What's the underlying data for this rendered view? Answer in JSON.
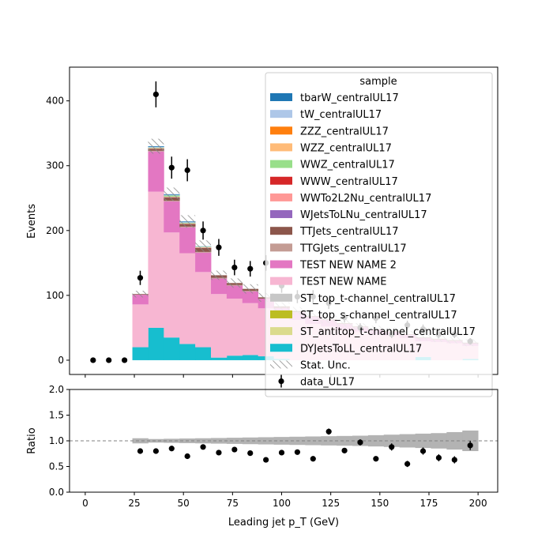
{
  "chart_data": [
    {
      "type": "bar",
      "subtype": "stacked-histogram-with-data",
      "xlabel": "",
      "ylabel": "Events",
      "xlim": [
        -8,
        210
      ],
      "ylim": [
        -22,
        452
      ],
      "xticks": [
        0,
        25,
        50,
        75,
        100,
        125,
        150,
        175,
        200
      ],
      "yticks": [
        0,
        100,
        200,
        300,
        400
      ],
      "bin_edges": [
        0,
        8,
        16,
        24,
        32,
        40,
        48,
        56,
        64,
        72,
        80,
        88,
        96,
        104,
        112,
        120,
        128,
        136,
        144,
        152,
        160,
        168,
        176,
        184,
        192,
        200
      ],
      "series": [
        {
          "name": "DYJetsToLL_centralUL17",
          "color": "#17becf",
          "values": [
            0,
            0,
            0,
            20,
            50,
            35,
            25,
            20,
            4,
            7,
            8,
            6,
            2,
            0,
            0,
            0,
            0,
            0,
            0,
            0,
            0,
            5,
            0,
            0,
            2
          ]
        },
        {
          "name": "ST_antitop_t-channel_centralUL17",
          "color": "#dbdb8d",
          "values": [
            0,
            0,
            0,
            0,
            0,
            0,
            0,
            0,
            0,
            0,
            0,
            0,
            0,
            0,
            0,
            0,
            0,
            0,
            0,
            0,
            0,
            0,
            0,
            0,
            0
          ]
        },
        {
          "name": "ST_top_s-channel_centralUL17",
          "color": "#bcbd22",
          "values": [
            0,
            0,
            0,
            0,
            0,
            0,
            0,
            0,
            0,
            0,
            0,
            0,
            0,
            0,
            0,
            0,
            0,
            0,
            0,
            0,
            0,
            0,
            0,
            0,
            0
          ]
        },
        {
          "name": "ST_top_t-channel_centralUL17",
          "color": "#c7c7c7",
          "values": [
            0,
            0,
            0,
            0,
            0,
            0,
            0,
            0,
            0,
            0,
            0,
            0,
            0,
            0,
            0,
            0,
            0,
            0,
            0,
            0,
            0,
            0,
            0,
            0,
            0
          ]
        },
        {
          "name": "TEST NEW NAME",
          "color": "#f7b6d2",
          "values": [
            0,
            0,
            0,
            66,
            210,
            162,
            140,
            116,
            98,
            88,
            80,
            74,
            66,
            62,
            56,
            52,
            48,
            44,
            40,
            38,
            34,
            24,
            28,
            26,
            20
          ]
        },
        {
          "name": "TEST NEW NAME 2",
          "color": "#e377c2",
          "values": [
            0,
            0,
            0,
            15,
            62,
            48,
            40,
            30,
            24,
            20,
            18,
            15,
            13,
            12,
            11,
            10,
            8,
            7,
            7,
            6,
            5,
            5,
            4,
            4,
            4
          ]
        },
        {
          "name": "TTGJets_centralUL17",
          "color": "#c49c94",
          "values": [
            0,
            0,
            0,
            0,
            1,
            1,
            1,
            1,
            1,
            1,
            1,
            0,
            0,
            0,
            0,
            0,
            0,
            0,
            0,
            0,
            0,
            0,
            0,
            0,
            0
          ]
        },
        {
          "name": "TTJets_centralUL17",
          "color": "#8c564b",
          "values": [
            0,
            0,
            0,
            1,
            3,
            5,
            4,
            6,
            4,
            3,
            3,
            2,
            2,
            2,
            1,
            1,
            1,
            1,
            1,
            1,
            1,
            1,
            1,
            1,
            1
          ]
        },
        {
          "name": "WJetsToLNu_centralUL17",
          "color": "#9467bd",
          "values": [
            0,
            0,
            0,
            0,
            0,
            0,
            0,
            0,
            0,
            0,
            0,
            0,
            0,
            0,
            0,
            0,
            0,
            0,
            0,
            0,
            0,
            0,
            0,
            0,
            0
          ]
        },
        {
          "name": "WWTo2L2Nu_centralUL17",
          "color": "#ff9896",
          "values": [
            0,
            0,
            0,
            0,
            1,
            1,
            1,
            1,
            0,
            0,
            0,
            0,
            0,
            0,
            0,
            0,
            0,
            0,
            0,
            0,
            0,
            0,
            0,
            0,
            0
          ]
        },
        {
          "name": "WWW_centralUL17",
          "color": "#d62728",
          "values": [
            0,
            0,
            0,
            0,
            0,
            0,
            0,
            0,
            0,
            0,
            0,
            0,
            0,
            0,
            0,
            0,
            0,
            0,
            0,
            0,
            0,
            0,
            0,
            0,
            0
          ]
        },
        {
          "name": "WWZ_centralUL17",
          "color": "#98df8a",
          "values": [
            0,
            0,
            0,
            0,
            1,
            2,
            1,
            1,
            0,
            0,
            0,
            0,
            0,
            0,
            0,
            0,
            0,
            0,
            0,
            0,
            0,
            0,
            0,
            0,
            0
          ]
        },
        {
          "name": "WZZ_centralUL17",
          "color": "#ffbb78",
          "values": [
            0,
            0,
            0,
            0,
            0,
            0,
            0,
            0,
            0,
            0,
            0,
            0,
            0,
            0,
            0,
            0,
            0,
            0,
            0,
            0,
            0,
            0,
            0,
            0,
            0
          ]
        },
        {
          "name": "ZZZ_centralUL17",
          "color": "#ff7f0e",
          "values": [
            0,
            0,
            0,
            0,
            0,
            0,
            0,
            0,
            0,
            0,
            0,
            0,
            0,
            0,
            0,
            0,
            0,
            0,
            0,
            0,
            0,
            0,
            0,
            0,
            0
          ]
        },
        {
          "name": "tW_centralUL17",
          "color": "#aec7e8",
          "values": [
            0,
            0,
            0,
            0,
            1,
            1,
            1,
            1,
            0,
            0,
            0,
            0,
            0,
            0,
            0,
            0,
            0,
            0,
            0,
            0,
            0,
            0,
            0,
            0,
            0
          ]
        },
        {
          "name": "tbarW_centralUL17",
          "color": "#1f77b4",
          "values": [
            0,
            0,
            0,
            0,
            1,
            1,
            1,
            0,
            0,
            0,
            0,
            0,
            0,
            0,
            0,
            0,
            0,
            0,
            0,
            0,
            0,
            0,
            0,
            0,
            0
          ]
        }
      ],
      "stat_unc": {
        "label": "Stat. Unc.",
        "fractional_halfwidth": [
          0,
          0,
          0,
          0.05,
          0.035,
          0.04,
          0.045,
          0.05,
          0.055,
          0.06,
          0.065,
          0.07,
          0.075,
          0.08,
          0.085,
          0.09,
          0.095,
          0.1,
          0.11,
          0.12,
          0.13,
          0.14,
          0.15,
          0.17,
          0.2
        ]
      },
      "data": {
        "name": "data_UL17",
        "x": [
          4,
          12,
          20,
          28,
          36,
          44,
          52,
          60,
          68,
          76,
          84,
          92,
          100,
          108,
          116,
          124,
          132,
          140,
          148,
          156,
          164,
          172,
          180,
          188,
          196
        ],
        "y": [
          0,
          0,
          0,
          127,
          410,
          297,
          293,
          200,
          174,
          143,
          141,
          150,
          115,
          98,
          98,
          88,
          66,
          50,
          65,
          40,
          54,
          48,
          40,
          40,
          29
        ],
        "yerr": [
          0,
          0,
          0,
          11,
          20,
          17,
          17,
          14,
          13,
          12,
          12,
          12,
          11,
          10,
          10,
          9,
          8,
          7,
          8,
          6,
          7,
          7,
          6,
          6,
          5
        ]
      },
      "legend": {
        "title": "sample",
        "placement": "upper right"
      }
    },
    {
      "type": "scatter",
      "subtype": "ratio-panel",
      "xlabel": "Leading jet  p_T (GeV)",
      "ylabel": "Ratio",
      "xlim": [
        -8,
        210
      ],
      "ylim": [
        0.0,
        2.0
      ],
      "xticks": [
        0,
        25,
        50,
        75,
        100,
        125,
        150,
        175,
        200
      ],
      "yticks": [
        0.0,
        0.5,
        1.0,
        1.5,
        2.0
      ],
      "reference_line": 1.0,
      "x": [
        28,
        36,
        44,
        52,
        60,
        68,
        76,
        84,
        92,
        100,
        108,
        116,
        124,
        132,
        140,
        148,
        156,
        164,
        172,
        180,
        188,
        196
      ],
      "y": [
        0.8,
        0.8,
        0.85,
        0.7,
        0.88,
        0.77,
        0.83,
        0.76,
        0.63,
        0.77,
        0.78,
        0.65,
        1.18,
        0.81,
        0.97,
        0.65,
        0.88,
        0.55,
        0.8,
        0.67,
        0.63,
        0.91
      ],
      "yerr": [
        0.03,
        0.03,
        0.03,
        0.03,
        0.04,
        0.04,
        0.04,
        0.04,
        0.04,
        0.04,
        0.04,
        0.04,
        0.06,
        0.05,
        0.06,
        0.05,
        0.07,
        0.06,
        0.07,
        0.07,
        0.07,
        0.09
      ]
    }
  ]
}
